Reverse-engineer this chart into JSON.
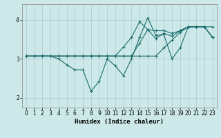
{
  "xlabel": "Humidex (Indice chaleur)",
  "bg_color": "#cce8e8",
  "grid_color": "#aacccc",
  "line_color": "#1a6b6b",
  "xlim": [
    -0.5,
    23.5
  ],
  "ylim": [
    1.75,
    4.4
  ],
  "yticks": [
    2,
    3,
    4
  ],
  "xticks": [
    0,
    1,
    2,
    3,
    4,
    5,
    6,
    7,
    8,
    9,
    10,
    11,
    12,
    13,
    14,
    15,
    16,
    17,
    18,
    19,
    20,
    21,
    22,
    23
  ],
  "series": [
    [
      3.07,
      3.07,
      3.07,
      3.07,
      3.0,
      2.85,
      2.72,
      2.72,
      2.17,
      2.42,
      3.0,
      2.82,
      2.57,
      3.0,
      3.55,
      4.05,
      3.6,
      3.62,
      3.0,
      3.28,
      3.82,
      3.82,
      3.82,
      3.82
    ],
    [
      3.07,
      3.07,
      3.07,
      3.07,
      3.07,
      3.07,
      3.07,
      3.07,
      3.07,
      3.07,
      3.07,
      3.07,
      3.07,
      3.07,
      3.4,
      3.75,
      3.52,
      3.65,
      3.58,
      3.72,
      3.82,
      3.82,
      3.82,
      3.55
    ],
    [
      3.07,
      3.07,
      3.07,
      3.07,
      3.07,
      3.07,
      3.07,
      3.07,
      3.07,
      3.07,
      3.07,
      3.07,
      3.3,
      3.55,
      3.95,
      3.75,
      3.72,
      3.72,
      3.65,
      3.72,
      3.82,
      3.82,
      3.82,
      3.55
    ],
    [
      3.07,
      3.07,
      3.07,
      3.07,
      3.07,
      3.07,
      3.07,
      3.07,
      3.07,
      3.07,
      3.07,
      3.07,
      3.07,
      3.07,
      3.07,
      3.07,
      3.07,
      3.28,
      3.48,
      3.68,
      3.82,
      3.82,
      3.82,
      3.55
    ]
  ]
}
